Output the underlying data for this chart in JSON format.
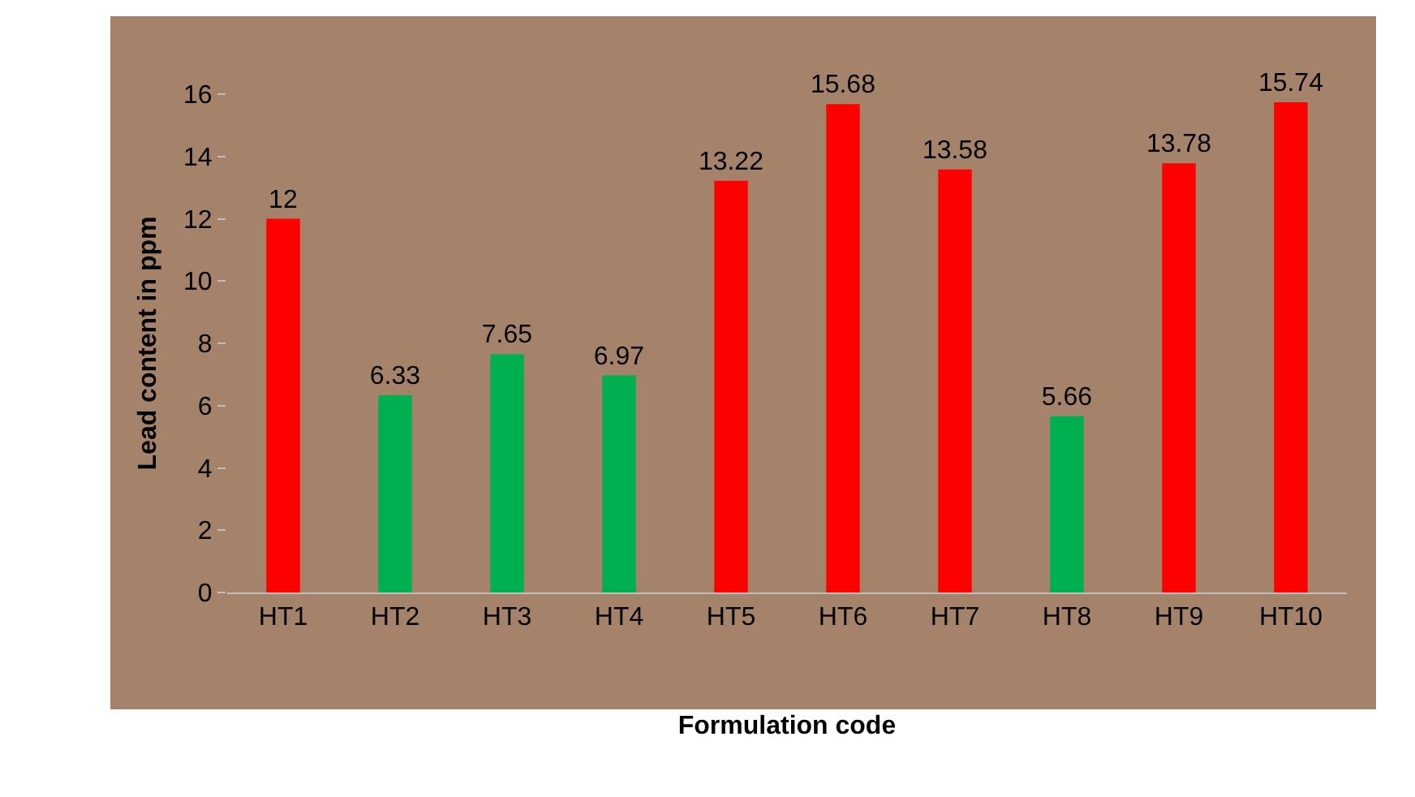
{
  "chart_data": {
    "type": "bar",
    "xlabel": "Formulation code",
    "ylabel": "Lead content in ppm",
    "categories": [
      "HT1",
      "HT2",
      "HT3",
      "HT4",
      "HT5",
      "HT6",
      "HT7",
      "HT8",
      "HT9",
      "HT10"
    ],
    "values": [
      12,
      6.33,
      7.65,
      6.97,
      13.22,
      15.68,
      13.58,
      5.66,
      13.78,
      15.74
    ],
    "colors": [
      "#ff0000",
      "#00b050",
      "#00b050",
      "#00b050",
      "#ff0000",
      "#ff0000",
      "#ff0000",
      "#00b050",
      "#ff0000",
      "#ff0000"
    ],
    "ylim": [
      0,
      16
    ],
    "yticks": [
      0,
      2,
      4,
      6,
      8,
      10,
      12,
      14,
      16
    ],
    "data_labels": true,
    "grid": false
  }
}
